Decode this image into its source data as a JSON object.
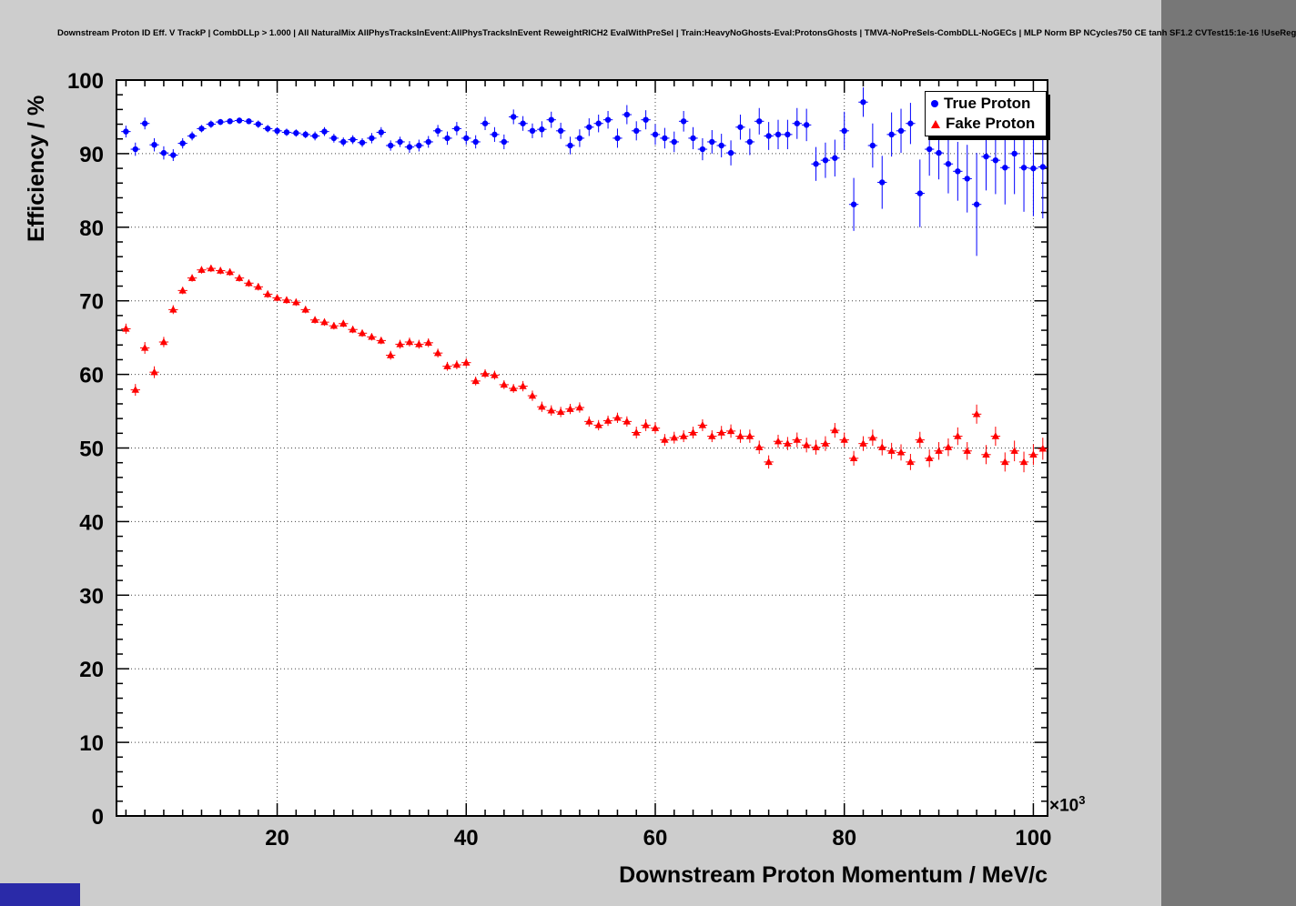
{
  "chart_data": {
    "type": "scatter",
    "title": "Downstream Proton ID Eff. V TrackP | CombDLLp > 1.000 | All NaturalMix AllPhysTracksInEvent:AllPhysTracksInEvent ReweightRICH2 EvalWithPreSel | Train:HeavyNoGhosts-Eval:ProtonsGhosts | TMVA-NoPreSels-CombDLL-NoGECs | MLP Norm BP NCycles750 CE tanh SF1.2 CVTest15:1e-16 !UseReg",
    "xlabel": "Downstream Proton Momentum / MeV/c",
    "ylabel": "Efficiency / %",
    "x_scale_label": "×10",
    "x_scale_exponent": "3",
    "xlim": [
      3,
      101.5
    ],
    "ylim": [
      0,
      100
    ],
    "x_major_ticks": [
      20,
      40,
      60,
      80,
      100
    ],
    "x_minor_step": 2,
    "y_major_ticks": [
      0,
      10,
      20,
      30,
      40,
      50,
      60,
      70,
      80,
      90,
      100
    ],
    "y_minor_step": 2,
    "grid": true,
    "grid_color": "#444444",
    "frame_color": "#000000",
    "legend": {
      "position": "top-right",
      "entries": [
        {
          "label": "True Proton",
          "marker": "circle",
          "color": "#0000ff"
        },
        {
          "label": "Fake Proton",
          "marker": "triangle",
          "color": "#ff0000"
        }
      ]
    },
    "series": [
      {
        "name": "True Proton",
        "color": "#0000ff",
        "marker": "circle",
        "points": [
          [
            4,
            93.0,
            0.8
          ],
          [
            5,
            90.6,
            0.9
          ],
          [
            6,
            94.1,
            0.8
          ],
          [
            7,
            91.2,
            0.9
          ],
          [
            8,
            90.1,
            0.9
          ],
          [
            9,
            89.8,
            0.8
          ],
          [
            10,
            91.4,
            0.7
          ],
          [
            11,
            92.4,
            0.6
          ],
          [
            12,
            93.4,
            0.5
          ],
          [
            13,
            94.0,
            0.5
          ],
          [
            14,
            94.3,
            0.4
          ],
          [
            15,
            94.4,
            0.4
          ],
          [
            16,
            94.5,
            0.4
          ],
          [
            17,
            94.4,
            0.4
          ],
          [
            18,
            94.0,
            0.5
          ],
          [
            19,
            93.4,
            0.5
          ],
          [
            20,
            93.1,
            0.5
          ],
          [
            21,
            92.9,
            0.5
          ],
          [
            22,
            92.8,
            0.5
          ],
          [
            23,
            92.6,
            0.5
          ],
          [
            24,
            92.4,
            0.6
          ],
          [
            25,
            93.0,
            0.6
          ],
          [
            26,
            92.1,
            0.6
          ],
          [
            27,
            91.6,
            0.6
          ],
          [
            28,
            91.9,
            0.6
          ],
          [
            29,
            91.5,
            0.6
          ],
          [
            30,
            92.1,
            0.7
          ],
          [
            31,
            92.9,
            0.7
          ],
          [
            32,
            91.1,
            0.7
          ],
          [
            33,
            91.6,
            0.7
          ],
          [
            34,
            90.9,
            0.8
          ],
          [
            35,
            91.1,
            0.8
          ],
          [
            36,
            91.6,
            0.8
          ],
          [
            37,
            93.1,
            0.8
          ],
          [
            38,
            92.1,
            0.9
          ],
          [
            39,
            93.4,
            0.9
          ],
          [
            40,
            92.1,
            0.9
          ],
          [
            41,
            91.6,
            0.9
          ],
          [
            42,
            94.1,
            0.9
          ],
          [
            43,
            92.6,
            1.0
          ],
          [
            44,
            91.6,
            1.0
          ],
          [
            45,
            95.0,
            1.0
          ],
          [
            46,
            94.1,
            1.0
          ],
          [
            47,
            93.1,
            1.0
          ],
          [
            48,
            93.3,
            1.1
          ],
          [
            49,
            94.6,
            1.1
          ],
          [
            50,
            93.1,
            1.1
          ],
          [
            51,
            91.1,
            1.2
          ],
          [
            52,
            92.1,
            1.2
          ],
          [
            53,
            93.6,
            1.2
          ],
          [
            54,
            94.1,
            1.2
          ],
          [
            55,
            94.6,
            1.2
          ],
          [
            56,
            92.1,
            1.3
          ],
          [
            57,
            95.3,
            1.3
          ],
          [
            58,
            93.1,
            1.3
          ],
          [
            59,
            94.6,
            1.3
          ],
          [
            60,
            92.6,
            1.4
          ],
          [
            61,
            92.1,
            1.4
          ],
          [
            62,
            91.6,
            1.4
          ],
          [
            63,
            94.4,
            1.4
          ],
          [
            64,
            92.1,
            1.5
          ],
          [
            65,
            90.6,
            1.5
          ],
          [
            66,
            91.6,
            1.6
          ],
          [
            67,
            91.1,
            1.6
          ],
          [
            68,
            90.1,
            1.7
          ],
          [
            69,
            93.6,
            1.7
          ],
          [
            70,
            91.6,
            1.8
          ],
          [
            71,
            94.4,
            1.8
          ],
          [
            72,
            92.4,
            1.9
          ],
          [
            73,
            92.6,
            2.0
          ],
          [
            74,
            92.6,
            2.0
          ],
          [
            75,
            94.1,
            2.1
          ],
          [
            76,
            93.9,
            2.2
          ],
          [
            77,
            88.6,
            2.3
          ],
          [
            78,
            89.1,
            2.4
          ],
          [
            79,
            89.4,
            2.5
          ],
          [
            80,
            93.1,
            2.6
          ],
          [
            81,
            83.1,
            3.6
          ],
          [
            82,
            97.0,
            2.0
          ],
          [
            83,
            91.1,
            3.0
          ],
          [
            84,
            86.1,
            3.6
          ],
          [
            85,
            92.6,
            3.0
          ],
          [
            86,
            93.1,
            3.0
          ],
          [
            87,
            94.1,
            2.8
          ],
          [
            88,
            84.6,
            4.6
          ],
          [
            89,
            90.6,
            3.6
          ],
          [
            90,
            90.1,
            3.6
          ],
          [
            91,
            88.6,
            4.0
          ],
          [
            92,
            87.6,
            4.0
          ],
          [
            93,
            86.6,
            4.6
          ],
          [
            94,
            83.1,
            7.0
          ],
          [
            95,
            89.6,
            4.6
          ],
          [
            96,
            89.1,
            4.6
          ],
          [
            97,
            88.1,
            5.0
          ],
          [
            98,
            90.0,
            5.5
          ],
          [
            99,
            88.1,
            6.0
          ],
          [
            100,
            88.0,
            6.5
          ],
          [
            101,
            88.2,
            7.0
          ]
        ]
      },
      {
        "name": "Fake Proton",
        "color": "#ff0000",
        "marker": "triangle",
        "points": [
          [
            4,
            66.2,
            0.7
          ],
          [
            5,
            57.9,
            0.8
          ],
          [
            6,
            63.6,
            0.8
          ],
          [
            7,
            60.3,
            0.8
          ],
          [
            8,
            64.4,
            0.7
          ],
          [
            9,
            68.8,
            0.6
          ],
          [
            10,
            71.4,
            0.5
          ],
          [
            11,
            73.1,
            0.5
          ],
          [
            12,
            74.2,
            0.5
          ],
          [
            13,
            74.4,
            0.5
          ],
          [
            14,
            74.1,
            0.5
          ],
          [
            15,
            73.9,
            0.5
          ],
          [
            16,
            73.1,
            0.5
          ],
          [
            17,
            72.4,
            0.5
          ],
          [
            18,
            71.9,
            0.5
          ],
          [
            19,
            70.9,
            0.5
          ],
          [
            20,
            70.4,
            0.5
          ],
          [
            21,
            70.1,
            0.5
          ],
          [
            22,
            69.8,
            0.5
          ],
          [
            23,
            68.8,
            0.5
          ],
          [
            24,
            67.4,
            0.5
          ],
          [
            25,
            67.1,
            0.5
          ],
          [
            26,
            66.6,
            0.5
          ],
          [
            27,
            66.9,
            0.5
          ],
          [
            28,
            66.1,
            0.5
          ],
          [
            29,
            65.6,
            0.5
          ],
          [
            30,
            65.1,
            0.5
          ],
          [
            31,
            64.6,
            0.5
          ],
          [
            32,
            62.6,
            0.6
          ],
          [
            33,
            64.1,
            0.6
          ],
          [
            34,
            64.4,
            0.6
          ],
          [
            35,
            64.1,
            0.6
          ],
          [
            36,
            64.3,
            0.6
          ],
          [
            37,
            62.9,
            0.6
          ],
          [
            38,
            61.1,
            0.6
          ],
          [
            39,
            61.3,
            0.6
          ],
          [
            40,
            61.6,
            0.6
          ],
          [
            41,
            59.1,
            0.6
          ],
          [
            42,
            60.1,
            0.6
          ],
          [
            43,
            59.9,
            0.6
          ],
          [
            44,
            58.6,
            0.6
          ],
          [
            45,
            58.1,
            0.6
          ],
          [
            46,
            58.4,
            0.7
          ],
          [
            47,
            57.1,
            0.7
          ],
          [
            48,
            55.6,
            0.7
          ],
          [
            49,
            55.1,
            0.7
          ],
          [
            50,
            54.9,
            0.7
          ],
          [
            51,
            55.3,
            0.7
          ],
          [
            52,
            55.5,
            0.7
          ],
          [
            53,
            53.6,
            0.7
          ],
          [
            54,
            53.1,
            0.7
          ],
          [
            55,
            53.7,
            0.7
          ],
          [
            56,
            54.1,
            0.7
          ],
          [
            57,
            53.6,
            0.7
          ],
          [
            58,
            52.1,
            0.8
          ],
          [
            59,
            53.1,
            0.8
          ],
          [
            60,
            52.7,
            0.8
          ],
          [
            61,
            51.1,
            0.8
          ],
          [
            62,
            51.4,
            0.8
          ],
          [
            63,
            51.6,
            0.8
          ],
          [
            64,
            52.1,
            0.8
          ],
          [
            65,
            53.1,
            0.8
          ],
          [
            66,
            51.6,
            0.8
          ],
          [
            67,
            52.1,
            0.9
          ],
          [
            68,
            52.3,
            0.9
          ],
          [
            69,
            51.6,
            0.9
          ],
          [
            70,
            51.6,
            0.9
          ],
          [
            71,
            50.1,
            0.9
          ],
          [
            72,
            48.1,
            0.9
          ],
          [
            73,
            50.9,
            0.9
          ],
          [
            74,
            50.6,
            0.9
          ],
          [
            75,
            51.1,
            1.0
          ],
          [
            76,
            50.4,
            1.0
          ],
          [
            77,
            50.1,
            1.0
          ],
          [
            78,
            50.6,
            1.0
          ],
          [
            79,
            52.4,
            1.0
          ],
          [
            80,
            51.1,
            1.0
          ],
          [
            81,
            48.6,
            1.0
          ],
          [
            82,
            50.6,
            1.0
          ],
          [
            83,
            51.4,
            1.1
          ],
          [
            84,
            50.1,
            1.1
          ],
          [
            85,
            49.6,
            1.1
          ],
          [
            86,
            49.4,
            1.1
          ],
          [
            87,
            48.1,
            1.1
          ],
          [
            88,
            51.1,
            1.1
          ],
          [
            89,
            48.6,
            1.2
          ],
          [
            90,
            49.6,
            1.2
          ],
          [
            91,
            50.1,
            1.2
          ],
          [
            92,
            51.6,
            1.2
          ],
          [
            93,
            49.6,
            1.2
          ],
          [
            94,
            54.6,
            1.3
          ],
          [
            95,
            49.1,
            1.3
          ],
          [
            96,
            51.6,
            1.3
          ],
          [
            97,
            48.1,
            1.3
          ],
          [
            98,
            49.6,
            1.4
          ],
          [
            99,
            48.1,
            1.4
          ],
          [
            100,
            49.1,
            1.4
          ],
          [
            101,
            49.9,
            1.5
          ]
        ]
      }
    ]
  }
}
